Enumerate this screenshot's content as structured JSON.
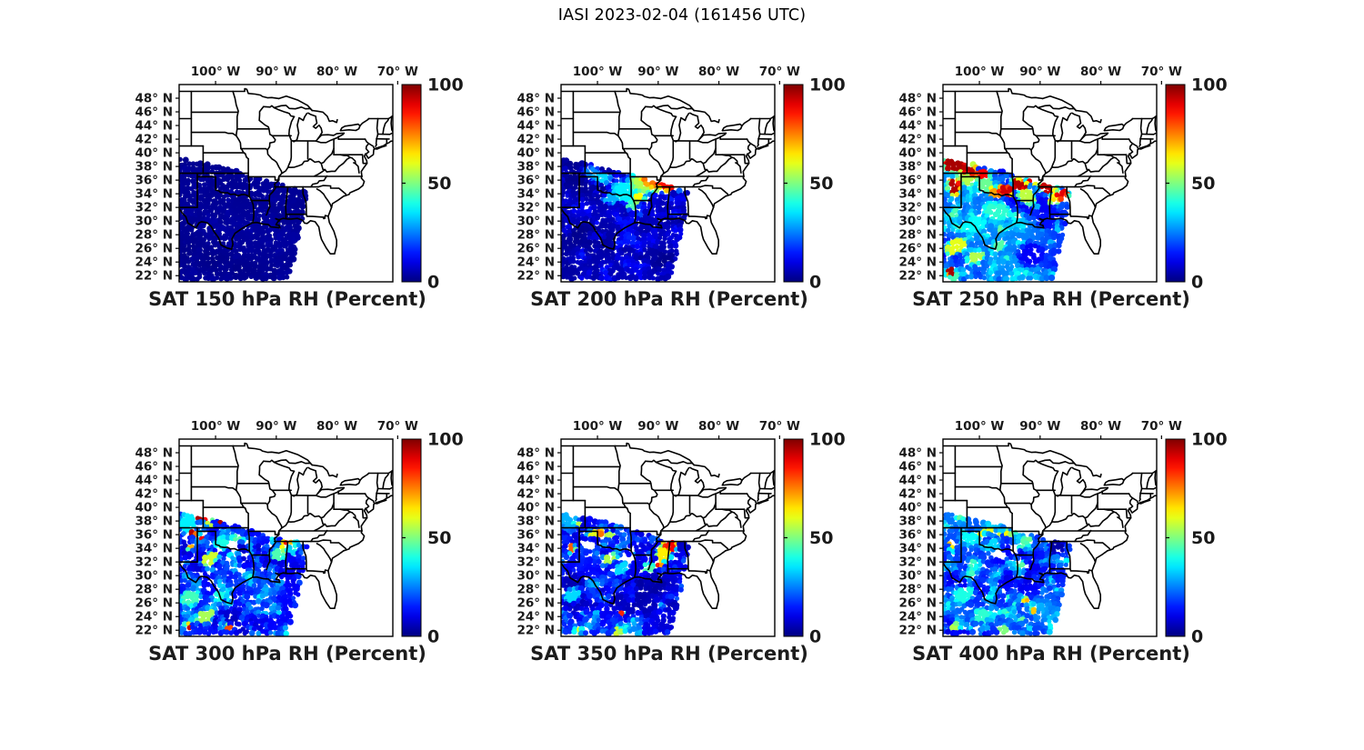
{
  "header": {
    "title": "IASI 2023-02-04 (161456 UTC)"
  },
  "chart_data": {
    "type": "scatter",
    "description": "Six map panels of IASI satellite-retrieved relative humidity (percent) over the central and eastern United States at six pressure levels, shown as colored observation dots on a diagonal satellite swath, jet colormap 0-100.",
    "colormap": "jet",
    "units": "Percent",
    "colorbar": {
      "min": 0,
      "max": 100,
      "ticks": [
        {
          "v": 0,
          "label": "0"
        },
        {
          "v": 50,
          "label": "50"
        },
        {
          "v": 100,
          "label": "100"
        }
      ]
    },
    "axes": {
      "lon_range_degW": [
        106.0,
        70.8
      ],
      "lat_range_degN": [
        21.1,
        50.0
      ],
      "lon_ticks": [
        {
          "v": 100,
          "label": "100° W"
        },
        {
          "v": 90,
          "label": "90° W"
        },
        {
          "v": 80,
          "label": "80° W"
        },
        {
          "v": 70,
          "label": "70° W"
        }
      ],
      "lat_ticks": [
        {
          "v": 48,
          "label": "48° N"
        },
        {
          "v": 46,
          "label": "46° N"
        },
        {
          "v": 44,
          "label": "44° N"
        },
        {
          "v": 42,
          "label": "42° N"
        },
        {
          "v": 40,
          "label": "40° N"
        },
        {
          "v": 38,
          "label": "38° N"
        },
        {
          "v": 36,
          "label": "36° N"
        },
        {
          "v": 34,
          "label": "34° N"
        },
        {
          "v": 32,
          "label": "32° N"
        },
        {
          "v": 30,
          "label": "30° N"
        },
        {
          "v": 28,
          "label": "28° N"
        },
        {
          "v": 26,
          "label": "26° N"
        },
        {
          "v": 24,
          "label": "24° N"
        },
        {
          "v": 22,
          "label": "22° N"
        }
      ]
    },
    "swath_polygon_lonlat": [
      [
        106.5,
        39.3
      ],
      [
        101,
        38.3
      ],
      [
        96,
        37.2
      ],
      [
        91.5,
        35.9
      ],
      [
        88,
        35.1
      ],
      [
        84.8,
        34.6
      ],
      [
        85.4,
        31.5
      ],
      [
        86.3,
        27.5
      ],
      [
        87.4,
        23.5
      ],
      [
        88.3,
        20.8
      ],
      [
        106.5,
        20.8
      ]
    ],
    "panels": [
      {
        "id": "sat-150",
        "pressure_hpa": 150,
        "title": "SAT 150 hPa RH (Percent)",
        "base_rh": 2,
        "speckle": 2,
        "mottle": 2,
        "dropout": 0.0,
        "features": [],
        "holes": []
      },
      {
        "id": "sat-200",
        "pressure_hpa": 200,
        "title": "SAT 200 hPa RH (Percent)",
        "base_rh": 4,
        "speckle": 14,
        "mottle": 8,
        "dropout": 0.01,
        "features": [
          {
            "x": 101.0,
            "y": 37.2,
            "rx": 1.6,
            "ry": 0.9,
            "v": 26
          },
          {
            "x": 99.3,
            "y": 36.2,
            "rx": 2.0,
            "ry": 1.0,
            "v": 34
          },
          {
            "x": 95.0,
            "y": 34.2,
            "rx": 3.4,
            "ry": 2.0,
            "v": 36,
            "rot": -12
          },
          {
            "x": 92.0,
            "y": 35.5,
            "rx": 3.4,
            "ry": 1.7,
            "v": 55,
            "rot": -14
          },
          {
            "x": 90.8,
            "y": 35.9,
            "rx": 2.5,
            "ry": 1.2,
            "v": 76,
            "rot": -14
          },
          {
            "x": 89.9,
            "y": 36.1,
            "rx": 1.7,
            "ry": 0.95,
            "v": 95,
            "rot": -14
          },
          {
            "x": 88.5,
            "y": 35.1,
            "rx": 1.1,
            "ry": 0.9,
            "v": 86
          },
          {
            "x": 93.2,
            "y": 33.4,
            "rx": 1.2,
            "ry": 1.0,
            "v": 62
          },
          {
            "x": 94.3,
            "y": 32.2,
            "rx": 1.0,
            "ry": 0.8,
            "v": 45
          },
          {
            "x": 86.4,
            "y": 35.0,
            "rx": 0.9,
            "ry": 0.7,
            "v": 46
          },
          {
            "x": 97.8,
            "y": 33.2,
            "rx": 1.6,
            "ry": 1.0,
            "v": 30
          }
        ],
        "holes": []
      },
      {
        "id": "sat-250",
        "pressure_hpa": 250,
        "title": "SAT 250 hPa RH (Percent)",
        "base_rh": 18,
        "speckle": 26,
        "mottle": 22,
        "dropout": 0.03,
        "features": [
          {
            "x": 104.0,
            "y": 38.3,
            "rx": 2.2,
            "ry": 1.5,
            "v": 96
          },
          {
            "x": 101.6,
            "y": 37.4,
            "rx": 1.5,
            "ry": 1.2,
            "v": 94
          },
          {
            "x": 104.1,
            "y": 35.0,
            "rx": 1.3,
            "ry": 1.5,
            "v": 95
          },
          {
            "x": 102.3,
            "y": 36.1,
            "rx": 1.5,
            "ry": 1.0,
            "v": 55
          },
          {
            "x": 99.5,
            "y": 36.7,
            "rx": 1.5,
            "ry": 1.0,
            "v": 88
          },
          {
            "x": 99.0,
            "y": 35.2,
            "rx": 1.8,
            "ry": 1.2,
            "v": 48
          },
          {
            "x": 97.4,
            "y": 34.1,
            "rx": 1.5,
            "ry": 1.0,
            "v": 72
          },
          {
            "x": 95.6,
            "y": 34.3,
            "rx": 1.5,
            "ry": 1.1,
            "v": 92,
            "rot": -18
          },
          {
            "x": 93.3,
            "y": 35.2,
            "rx": 1.7,
            "ry": 1.1,
            "v": 95,
            "rot": -18
          },
          {
            "x": 90.9,
            "y": 36.1,
            "rx": 1.5,
            "ry": 1.0,
            "v": 90
          },
          {
            "x": 88.7,
            "y": 34.9,
            "rx": 1.7,
            "ry": 1.2,
            "v": 93
          },
          {
            "x": 86.4,
            "y": 33.7,
            "rx": 1.3,
            "ry": 1.1,
            "v": 90
          },
          {
            "x": 87.6,
            "y": 33.0,
            "rx": 1.2,
            "ry": 0.9,
            "v": 66
          },
          {
            "x": 92.1,
            "y": 33.4,
            "rx": 2.1,
            "ry": 1.3,
            "v": 56,
            "rot": -18
          },
          {
            "x": 97.0,
            "y": 31.4,
            "rx": 2.8,
            "ry": 1.6,
            "v": 42,
            "rot": -10
          },
          {
            "x": 100.7,
            "y": 29.4,
            "rx": 2.3,
            "ry": 1.4,
            "v": 38,
            "rot": 15
          },
          {
            "x": 103.8,
            "y": 26.2,
            "rx": 2.3,
            "ry": 1.3,
            "v": 60,
            "rot": 22
          },
          {
            "x": 100.6,
            "y": 24.6,
            "rx": 1.9,
            "ry": 1.1,
            "v": 55,
            "rot": 22
          },
          {
            "x": 104.8,
            "y": 22.7,
            "rx": 0.8,
            "ry": 0.7,
            "v": 96
          },
          {
            "x": 96.6,
            "y": 26.4,
            "rx": 1.4,
            "ry": 0.9,
            "v": 46
          },
          {
            "x": 91.5,
            "y": 25.0,
            "rx": 2.6,
            "ry": 2.3,
            "v": 12
          },
          {
            "x": 89.0,
            "y": 30.0,
            "rx": 1.8,
            "ry": 1.6,
            "v": 14
          }
        ],
        "holes": []
      },
      {
        "id": "sat-300",
        "pressure_hpa": 300,
        "title": "SAT 300 hPa RH (Percent)",
        "base_rh": 12,
        "speckle": 30,
        "mottle": 14,
        "dropout": 0.05,
        "features": [
          {
            "x": 104.6,
            "y": 37.6,
            "rx": 1.7,
            "ry": 2.0,
            "v": 36
          },
          {
            "x": 102.7,
            "y": 38.3,
            "rx": 0.55,
            "ry": 0.5,
            "v": 96
          },
          {
            "x": 101.4,
            "y": 38.2,
            "rx": 0.5,
            "ry": 0.45,
            "v": 95
          },
          {
            "x": 100.2,
            "y": 38.4,
            "rx": 0.5,
            "ry": 0.45,
            "v": 90
          },
          {
            "x": 99.1,
            "y": 37.9,
            "rx": 0.5,
            "ry": 0.45,
            "v": 96
          },
          {
            "x": 101.0,
            "y": 37.5,
            "rx": 0.5,
            "ry": 0.4,
            "v": 74
          },
          {
            "x": 103.7,
            "y": 36.2,
            "rx": 0.7,
            "ry": 0.6,
            "v": 95
          },
          {
            "x": 102.3,
            "y": 35.4,
            "rx": 0.6,
            "ry": 0.5,
            "v": 88
          },
          {
            "x": 104.2,
            "y": 34.1,
            "rx": 0.6,
            "ry": 0.5,
            "v": 70
          },
          {
            "x": 98.6,
            "y": 34.7,
            "rx": 2.0,
            "ry": 1.2,
            "v": 40
          },
          {
            "x": 100.9,
            "y": 32.4,
            "rx": 2.0,
            "ry": 1.0,
            "v": 58,
            "rot": 28
          },
          {
            "x": 96.6,
            "y": 35.3,
            "rx": 1.0,
            "ry": 0.8,
            "v": 46
          },
          {
            "x": 88.1,
            "y": 35.3,
            "rx": 1.2,
            "ry": 0.85,
            "v": 85
          },
          {
            "x": 88.9,
            "y": 34.1,
            "rx": 1.0,
            "ry": 0.8,
            "v": 62
          },
          {
            "x": 89.6,
            "y": 33.0,
            "rx": 1.5,
            "ry": 1.1,
            "v": 45
          },
          {
            "x": 87.1,
            "y": 34.1,
            "rx": 1.0,
            "ry": 1.1,
            "v": 40
          },
          {
            "x": 104.1,
            "y": 26.6,
            "rx": 2.1,
            "ry": 1.5,
            "v": 44,
            "rot": 20
          },
          {
            "x": 101.6,
            "y": 24.1,
            "rx": 2.1,
            "ry": 1.2,
            "v": 54,
            "rot": 20
          },
          {
            "x": 104.6,
            "y": 22.5,
            "rx": 0.7,
            "ry": 0.6,
            "v": 92
          },
          {
            "x": 97.7,
            "y": 22.3,
            "rx": 0.7,
            "ry": 0.6,
            "v": 80
          },
          {
            "x": 99.4,
            "y": 26.9,
            "rx": 1.5,
            "ry": 0.9,
            "v": 40
          }
        ],
        "holes": [
          {
            "x": 97.3,
            "y": 34.2,
            "rx": 1.0,
            "ry": 0.7
          },
          {
            "x": 94.9,
            "y": 33.1,
            "rx": 0.8,
            "ry": 0.6
          },
          {
            "x": 95.8,
            "y": 31.0,
            "rx": 0.7,
            "ry": 0.5
          }
        ]
      },
      {
        "id": "sat-350",
        "pressure_hpa": 350,
        "title": "SAT 350 hPa RH (Percent)",
        "base_rh": 10,
        "speckle": 28,
        "mottle": 13,
        "dropout": 0.07,
        "features": [
          {
            "x": 104.6,
            "y": 37.9,
            "rx": 1.7,
            "ry": 1.9,
            "v": 30
          },
          {
            "x": 103.4,
            "y": 37.8,
            "rx": 0.6,
            "ry": 0.5,
            "v": 75
          },
          {
            "x": 104.2,
            "y": 33.9,
            "rx": 0.75,
            "ry": 0.85,
            "v": 78
          },
          {
            "x": 100.4,
            "y": 36.1,
            "rx": 1.7,
            "ry": 0.7,
            "v": 60
          },
          {
            "x": 99.4,
            "y": 36.2,
            "rx": 0.7,
            "ry": 0.5,
            "v": 76
          },
          {
            "x": 97.9,
            "y": 35.9,
            "rx": 0.9,
            "ry": 0.6,
            "v": 55
          },
          {
            "x": 98.1,
            "y": 32.4,
            "rx": 1.7,
            "ry": 0.95,
            "v": 55,
            "rot": 24
          },
          {
            "x": 95.9,
            "y": 30.9,
            "rx": 1.7,
            "ry": 1.0,
            "v": 34,
            "rot": 24
          },
          {
            "x": 88.1,
            "y": 34.5,
            "rx": 1.5,
            "ry": 1.2,
            "v": 88
          },
          {
            "x": 89.1,
            "y": 33.1,
            "rx": 1.5,
            "ry": 1.3,
            "v": 64
          },
          {
            "x": 87.1,
            "y": 35.5,
            "rx": 1.1,
            "ry": 0.75,
            "v": 60
          },
          {
            "x": 89.9,
            "y": 31.7,
            "rx": 0.8,
            "ry": 0.7,
            "v": 84
          },
          {
            "x": 91.6,
            "y": 31.1,
            "rx": 1.2,
            "ry": 0.95,
            "v": 46
          },
          {
            "x": 95.7,
            "y": 24.4,
            "rx": 0.6,
            "ry": 0.55,
            "v": 84
          },
          {
            "x": 103.2,
            "y": 21.9,
            "rx": 0.8,
            "ry": 0.6,
            "v": 60
          },
          {
            "x": 96.7,
            "y": 21.7,
            "rx": 0.8,
            "ry": 0.6,
            "v": 58
          },
          {
            "x": 104.0,
            "y": 27.1,
            "rx": 1.9,
            "ry": 1.3,
            "v": 34,
            "rot": 20
          }
        ],
        "holes": [
          {
            "x": 101.1,
            "y": 34.4,
            "rx": 1.2,
            "ry": 0.9
          },
          {
            "x": 95.1,
            "y": 32.4,
            "rx": 1.0,
            "ry": 0.7
          },
          {
            "x": 97.6,
            "y": 30.9,
            "rx": 0.7,
            "ry": 0.5
          }
        ]
      },
      {
        "id": "sat-400",
        "pressure_hpa": 400,
        "title": "SAT 400 hPa RH (Percent)",
        "base_rh": 15,
        "speckle": 34,
        "mottle": 18,
        "dropout": 0.05,
        "features": [
          {
            "x": 104.7,
            "y": 38.6,
            "rx": 1.1,
            "ry": 1.3,
            "v": 24
          },
          {
            "x": 99.6,
            "y": 36.3,
            "rx": 0.6,
            "ry": 0.5,
            "v": 62
          },
          {
            "x": 98.2,
            "y": 36.5,
            "rx": 0.6,
            "ry": 0.5,
            "v": 60
          },
          {
            "x": 96.9,
            "y": 36.2,
            "rx": 0.6,
            "ry": 0.5,
            "v": 58
          },
          {
            "x": 95.5,
            "y": 36.3,
            "rx": 0.6,
            "ry": 0.5,
            "v": 62
          },
          {
            "x": 95.1,
            "y": 35.8,
            "rx": 0.5,
            "ry": 0.45,
            "v": 72
          },
          {
            "x": 104.4,
            "y": 34.0,
            "rx": 0.7,
            "ry": 0.6,
            "v": 64
          },
          {
            "x": 104.6,
            "y": 34.6,
            "rx": 0.5,
            "ry": 0.45,
            "v": 84
          },
          {
            "x": 101.6,
            "y": 35.3,
            "rx": 1.9,
            "ry": 1.1,
            "v": 38
          },
          {
            "x": 97.6,
            "y": 34.6,
            "rx": 1.4,
            "ry": 0.9,
            "v": 34
          },
          {
            "x": 87.3,
            "y": 34.3,
            "rx": 1.5,
            "ry": 1.8,
            "v": 4
          },
          {
            "x": 89.7,
            "y": 35.9,
            "rx": 1.0,
            "ry": 0.7,
            "v": 6
          },
          {
            "x": 93.5,
            "y": 31.9,
            "rx": 0.8,
            "ry": 0.6,
            "v": 60
          },
          {
            "x": 92.3,
            "y": 26.3,
            "rx": 0.6,
            "ry": 0.5,
            "v": 70
          },
          {
            "x": 91.0,
            "y": 24.8,
            "rx": 0.6,
            "ry": 0.5,
            "v": 68
          },
          {
            "x": 95.6,
            "y": 26.6,
            "rx": 0.6,
            "ry": 0.5,
            "v": 62
          },
          {
            "x": 102.6,
            "y": 27.1,
            "rx": 2.3,
            "ry": 1.4,
            "v": 40,
            "rot": 20
          },
          {
            "x": 99.6,
            "y": 24.1,
            "rx": 1.9,
            "ry": 1.1,
            "v": 42,
            "rot": 20
          },
          {
            "x": 104.0,
            "y": 22.4,
            "rx": 1.0,
            "ry": 0.7,
            "v": 55
          },
          {
            "x": 96.1,
            "y": 22.1,
            "rx": 1.0,
            "ry": 0.7,
            "v": 50
          }
        ],
        "holes": [
          {
            "x": 96.9,
            "y": 33.2,
            "rx": 1.1,
            "ry": 0.8
          },
          {
            "x": 94.1,
            "y": 33.9,
            "rx": 0.8,
            "ry": 0.6
          },
          {
            "x": 99.1,
            "y": 31.6,
            "rx": 0.6,
            "ry": 0.5
          }
        ]
      }
    ]
  }
}
